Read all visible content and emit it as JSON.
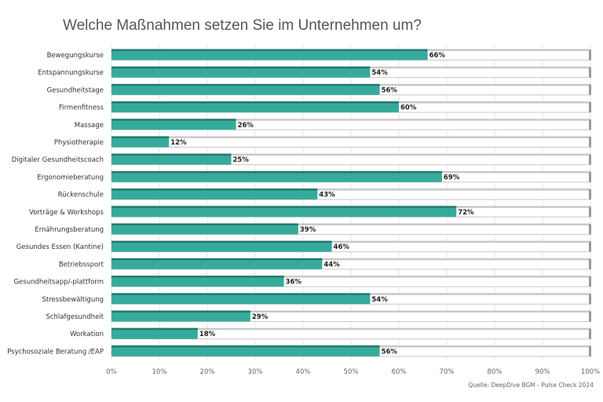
{
  "chart_data": {
    "type": "bar",
    "orientation": "horizontal",
    "title": "Welche Maßnahmen setzen Sie im Unternehmen um?",
    "source": "Quelle: DeepDive BGM - Pulse Check 2024",
    "categories": [
      "Bewegungskurse",
      "Entspannungskurse",
      "Gesundheitstage",
      "Firmenfitness",
      "Massage",
      "Physiotherapie",
      "Digitaler Gesundheitscoach",
      "Ergonomieberatung",
      "Rückenschule",
      "Vorträge & Workshops",
      "Ernährungsberatung",
      "Gesundes Essen (Kantine)",
      "Betriebssport",
      "Gesundheitsapp/-plattform",
      "Stressbewältigung",
      "Schlafgesundheit",
      "Workation",
      "Psychosoziale Beratung /EAP"
    ],
    "values": [
      66,
      54,
      56,
      60,
      26,
      12,
      25,
      69,
      43,
      72,
      39,
      46,
      44,
      36,
      54,
      29,
      18,
      56
    ],
    "data_labels": [
      "66%",
      "54%",
      "56%",
      "60%",
      "26%",
      "12%",
      "25%",
      "69%",
      "43%",
      "72%",
      "39%",
      "46%",
      "44%",
      "36%",
      "54%",
      "29%",
      "18%",
      "56%"
    ],
    "xlim": [
      0,
      100
    ],
    "xticks": [
      "0%",
      "10%",
      "20%",
      "30%",
      "40%",
      "50%",
      "60%",
      "70%",
      "80%",
      "90%",
      "100%"
    ],
    "grid": true,
    "colors": {
      "bar": "#36ab9b",
      "bar_top": "#237a6e",
      "track": "#c8c8c8"
    }
  }
}
